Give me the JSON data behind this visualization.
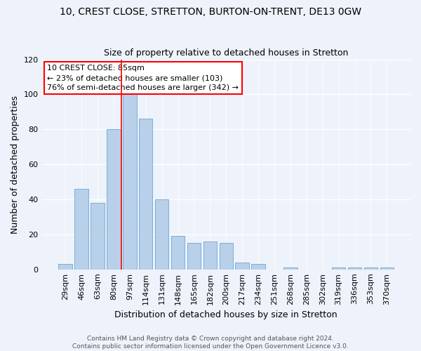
{
  "title1": "10, CREST CLOSE, STRETTON, BURTON-ON-TRENT, DE13 0GW",
  "title2": "Size of property relative to detached houses in Stretton",
  "xlabel": "Distribution of detached houses by size in Stretton",
  "ylabel": "Number of detached properties",
  "categories": [
    "29sqm",
    "46sqm",
    "63sqm",
    "80sqm",
    "97sqm",
    "114sqm",
    "131sqm",
    "148sqm",
    "165sqm",
    "182sqm",
    "200sqm",
    "217sqm",
    "234sqm",
    "251sqm",
    "268sqm",
    "285sqm",
    "302sqm",
    "319sqm",
    "336sqm",
    "353sqm",
    "370sqm"
  ],
  "values": [
    3,
    46,
    38,
    80,
    100,
    86,
    40,
    19,
    15,
    16,
    15,
    4,
    3,
    0,
    1,
    0,
    0,
    1,
    1,
    1,
    1
  ],
  "bar_color": "#b8d0ea",
  "bar_edge_color": "#7aafd4",
  "ylim": [
    0,
    120
  ],
  "yticks": [
    0,
    20,
    40,
    60,
    80,
    100,
    120
  ],
  "vline_x": 3.5,
  "annotation_text": "10 CREST CLOSE: 85sqm\n← 23% of detached houses are smaller (103)\n76% of semi-detached houses are larger (342) →",
  "footnote": "Contains HM Land Registry data © Crown copyright and database right 2024.\nContains public sector information licensed under the Open Government Licence v3.0.",
  "bg_color": "#eef2fb",
  "grid_color": "#ffffff",
  "title1_fontsize": 10,
  "title2_fontsize": 9,
  "ylabel_fontsize": 9,
  "xlabel_fontsize": 9,
  "tick_fontsize": 8,
  "annot_fontsize": 8,
  "footnote_fontsize": 6.5
}
